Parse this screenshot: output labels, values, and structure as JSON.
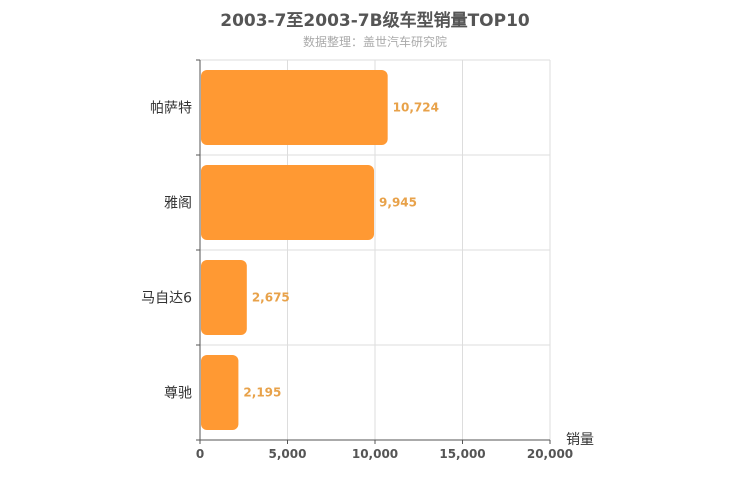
{
  "colors": {
    "bar": "#FF9933",
    "label": "#E8A24A",
    "grid": "#dddddd",
    "axis": "#555555"
  },
  "chart_data": {
    "type": "bar",
    "orientation": "horizontal",
    "title": "2003-7至2003-7B级车型销量TOP10",
    "subtitle": "数据整理：盖世汽车研究院",
    "xlabel": "销量",
    "ylabel": "",
    "categories": [
      "帕萨特",
      "雅阁",
      "马自达6",
      "尊驰"
    ],
    "values": [
      10724,
      9945,
      2675,
      2195
    ],
    "value_labels": [
      "10,724",
      "9,945",
      "2,675",
      "2,195"
    ],
    "xlim": [
      0,
      20000
    ],
    "x_ticks": [
      0,
      5000,
      10000,
      15000,
      20000
    ],
    "x_tick_labels": [
      "0",
      "5,000",
      "10,000",
      "15,000",
      "20,000"
    ],
    "grid": true,
    "legend": "none"
  }
}
